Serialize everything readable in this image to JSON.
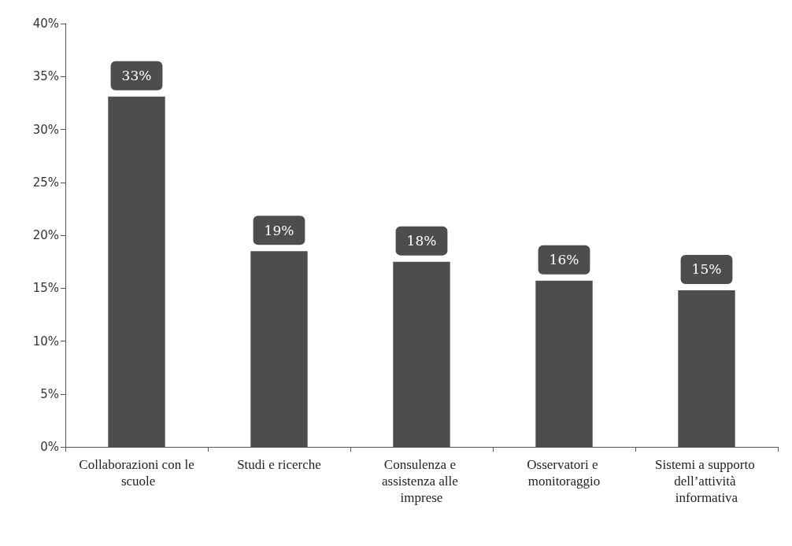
{
  "chart_data": {
    "type": "bar",
    "categories": [
      "Collaborazioni con le scuole",
      "Studi e ricerche",
      "Consulenza e assistenza alle imprese",
      "Osservatori e monitoraggio",
      "Sistemi a supporto dell’attività informativa"
    ],
    "values": [
      33.1,
      18.5,
      17.5,
      15.7,
      14.8
    ],
    "value_labels": [
      "33%",
      "19%",
      "18%",
      "16%",
      "15%"
    ],
    "color": "#4d4d4d",
    "ylim": [
      0,
      40
    ],
    "yticks": [
      {
        "value": 0,
        "label": "0%"
      },
      {
        "value": 5,
        "label": "5%"
      },
      {
        "value": 10,
        "label": "10%"
      },
      {
        "value": 15,
        "label": "15%"
      },
      {
        "value": 20,
        "label": "20%"
      },
      {
        "value": 25,
        "label": "25%"
      },
      {
        "value": 30,
        "label": "30%"
      },
      {
        "value": 35,
        "label": "35%"
      },
      {
        "value": 40,
        "label": "40%"
      }
    ],
    "grid": false
  }
}
